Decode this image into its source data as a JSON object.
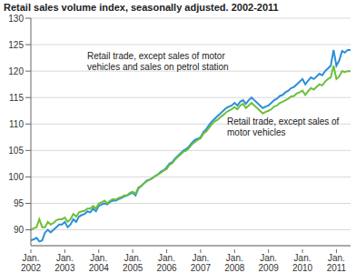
{
  "chart_data": {
    "type": "line",
    "title": "Retail sales volume index, seasonally adjusted. 2002-2011",
    "categories": [
      "Jan. 2002",
      null,
      null,
      null,
      null,
      null,
      null,
      null,
      null,
      null,
      null,
      null,
      "Jan. 2003",
      null,
      null,
      null,
      null,
      null,
      null,
      null,
      null,
      null,
      null,
      null,
      "Jan. 2004",
      null,
      null,
      null,
      null,
      null,
      null,
      null,
      null,
      null,
      null,
      null,
      "Jan. 2005",
      null,
      null,
      null,
      null,
      null,
      null,
      null,
      null,
      null,
      null,
      null,
      "Jan. 2006",
      null,
      null,
      null,
      null,
      null,
      null,
      null,
      null,
      null,
      null,
      null,
      "Jan. 2007",
      null,
      null,
      null,
      null,
      null,
      null,
      null,
      null,
      null,
      null,
      null,
      "Jan. 2008",
      null,
      null,
      null,
      null,
      null,
      null,
      null,
      null,
      null,
      null,
      null,
      "Jan. 2009",
      null,
      null,
      null,
      null,
      null,
      null,
      null,
      null,
      null,
      null,
      null,
      "Jan. 2010",
      null,
      null,
      null,
      null,
      null,
      null,
      null,
      null,
      null,
      null,
      null,
      "Jan. 2011",
      null,
      null,
      null,
      null,
      null
    ],
    "series": [
      {
        "name": "Retail trade, except sales of motor vehicles and sales on petrol station",
        "color": "#2b8fd8",
        "values": [
          88,
          88.2,
          88.5,
          87.8,
          88,
          89.5,
          90,
          89.5,
          90,
          90.5,
          91,
          91,
          91.5,
          90.5,
          91,
          92,
          91.5,
          92.5,
          92.8,
          93,
          93.5,
          93.3,
          94,
          93.5,
          94.5,
          94.8,
          95,
          94.8,
          95.3,
          95.5,
          95.5,
          95.8,
          96,
          96.3,
          96.5,
          96.8,
          97,
          96.5,
          97.8,
          98.3,
          98.8,
          99.3,
          99.5,
          99.8,
          100.2,
          100.5,
          101,
          101.3,
          101.8,
          102.5,
          102.8,
          103.5,
          104,
          104.5,
          105,
          105.3,
          105.8,
          106.5,
          107,
          107.2,
          107.5,
          108.5,
          109,
          109.8,
          110.5,
          111,
          111.5,
          112,
          112.5,
          113,
          113.3,
          113.5,
          114,
          113.5,
          114.2,
          114.5,
          113.8,
          114.5,
          115,
          114.5,
          114,
          113.5,
          113,
          113.3,
          113.5,
          114,
          114.5,
          114.8,
          115.3,
          115.5,
          116,
          116.3,
          116.8,
          117,
          117.5,
          118,
          118.5,
          117.5,
          118.2,
          118.8,
          118.5,
          119,
          119.5,
          119.2,
          120,
          120.5,
          121,
          124,
          121,
          122,
          123.8,
          123.5,
          124,
          124
        ]
      },
      {
        "name": "Retail trade, except sales of motor vehicles",
        "color": "#6cbf3a",
        "values": [
          90,
          90.3,
          90.5,
          92,
          90.5,
          90.5,
          91.5,
          91,
          91.3,
          91.8,
          92,
          92,
          92.3,
          91.5,
          92,
          93,
          92.5,
          93.3,
          93.5,
          93.6,
          94,
          94,
          94.5,
          94,
          95,
          95.2,
          95.5,
          95,
          95.5,
          95.8,
          95.7,
          96,
          96.2,
          96.5,
          96.5,
          97,
          97.2,
          96.8,
          98,
          98.3,
          98.8,
          99.2,
          99.5,
          99.8,
          100.2,
          100.5,
          100.8,
          101.2,
          101.5,
          102.3,
          102.6,
          103.3,
          103.8,
          104.3,
          104.8,
          105,
          105.5,
          106.2,
          106.6,
          107,
          107.3,
          108.2,
          108.6,
          109.3,
          110,
          110.5,
          110.8,
          111.3,
          111.7,
          112.2,
          112.5,
          112.8,
          113.2,
          112.8,
          113.5,
          113.8,
          113,
          113.5,
          114,
          113.5,
          113,
          112.5,
          112,
          112.3,
          112.5,
          112.8,
          113.3,
          113.5,
          114,
          114.2,
          114.5,
          114.8,
          115.2,
          115.3,
          115.8,
          116,
          116.3,
          115.5,
          116.2,
          116.8,
          116.5,
          117,
          117.5,
          117.3,
          118,
          118.5,
          118.8,
          121,
          118.5,
          119,
          120,
          119.8,
          120,
          120
        ]
      }
    ],
    "ylim": [
      87,
      130
    ],
    "yticks": [
      90,
      95,
      100,
      105,
      110,
      115,
      120,
      125,
      130
    ],
    "grid": true
  }
}
